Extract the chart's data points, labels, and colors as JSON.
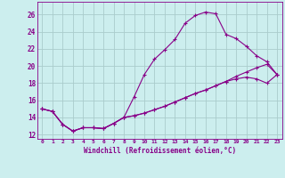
{
  "xlabel": "Windchill (Refroidissement éolien,°C)",
  "background_color": "#cceeee",
  "grid_color": "#aacccc",
  "line_color": "#880088",
  "line1": [
    15.0,
    14.7,
    13.2,
    12.4,
    12.8,
    12.8,
    12.7,
    13.3,
    14.0,
    16.4,
    19.0,
    20.8,
    21.9,
    23.1,
    25.0,
    25.9,
    26.3,
    26.1,
    23.7,
    23.2,
    22.3,
    21.2,
    20.5,
    19.0
  ],
  "line2": [
    15.0,
    14.7,
    13.2,
    12.4,
    12.8,
    12.8,
    12.7,
    13.3,
    14.0,
    14.2,
    14.5,
    14.9,
    15.3,
    15.8,
    16.3,
    16.8,
    17.2,
    17.7,
    18.2,
    18.8,
    19.3,
    19.8,
    20.2,
    19.0
  ],
  "line3": [
    15.0,
    14.7,
    13.2,
    12.4,
    12.8,
    12.8,
    12.7,
    13.3,
    14.0,
    14.2,
    14.5,
    14.9,
    15.3,
    15.8,
    16.3,
    16.8,
    17.2,
    17.7,
    18.2,
    18.5,
    18.7,
    18.5,
    18.0,
    19.0
  ],
  "hours": [
    0,
    1,
    2,
    3,
    4,
    5,
    6,
    7,
    8,
    9,
    10,
    11,
    12,
    13,
    14,
    15,
    16,
    17,
    18,
    19,
    20,
    21,
    22,
    23
  ],
  "ylim": [
    11.5,
    27.5
  ],
  "yticks": [
    12,
    14,
    16,
    18,
    20,
    22,
    24,
    26
  ],
  "marker": "+",
  "marker_size": 3,
  "line_width": 0.8
}
